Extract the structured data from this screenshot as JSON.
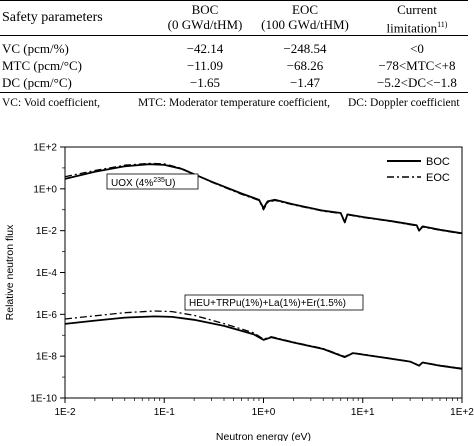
{
  "table": {
    "header": {
      "param": "Safety parameters",
      "boc_line1": "BOC",
      "boc_line2": "(0 GWd/tHM)",
      "eoc_line1": "EOC",
      "eoc_line2": "(100 GWd/tHM)",
      "limit_line1": "Current",
      "limit_line2": "limitation",
      "limit_ref": "11)"
    },
    "rows": [
      {
        "param": "VC (pcm/%)",
        "boc": "−42.14",
        "eoc": "−248.54",
        "limit": "<0"
      },
      {
        "param": "MTC (pcm/°C)",
        "boc": "−11.09",
        "eoc": "−68.26",
        "limit": "−78<MTC<+8"
      },
      {
        "param": "DC (pcm/°C)",
        "boc": "−1.65",
        "eoc": "−1.47",
        "limit": "−5.2<DC<−1.8"
      }
    ],
    "footnote": {
      "vc": "VC: Void coefficient,",
      "mtc": "MTC: Moderator temperature coefficient,",
      "dc": "DC: Doppler coefficient"
    }
  },
  "chart_data": {
    "type": "line",
    "xscale": "log",
    "yscale": "log",
    "xlim": [
      0.01,
      100
    ],
    "ylim": [
      1e-10,
      100
    ],
    "xlabel": "Neutron energy (eV)",
    "ylabel": "Relative neutron flux",
    "x_tick_labels": [
      "1E-2",
      "1E-1",
      "1E+0",
      "1E+1",
      "1E+2"
    ],
    "y_tick_labels": [
      "1E-10",
      "1E-8",
      "1E-6",
      "1E-4",
      "1E-2",
      "1E+0",
      "1E+2"
    ],
    "legend": {
      "position": "top-right",
      "entries": [
        "BOC",
        "EOC"
      ]
    },
    "annotations": {
      "uox": {
        "prefix": "UOX (4%",
        "sup": "235",
        "suffix": "U)"
      },
      "heu": "HEU+TRPu(1%)+La(1%)+Er(1.5%)"
    },
    "series": [
      {
        "name": "BOC",
        "group": "UOX",
        "style": "solid",
        "x": [
          0.01,
          0.02,
          0.04,
          0.07,
          0.1,
          0.15,
          0.3,
          0.6,
          0.9,
          1.0,
          1.1,
          1.3,
          2,
          4,
          6,
          6.6,
          7,
          10,
          20,
          35,
          37,
          40,
          60,
          100
        ],
        "y": [
          3.0,
          6.5,
          12,
          15,
          14,
          9.0,
          2.2,
          0.6,
          0.3,
          0.12,
          0.25,
          0.3,
          0.18,
          0.09,
          0.07,
          0.025,
          0.06,
          0.045,
          0.028,
          0.018,
          0.01,
          0.016,
          0.011,
          0.0075
        ]
      },
      {
        "name": "EOC",
        "group": "UOX",
        "style": "dashdot",
        "x": [
          0.01,
          0.02,
          0.04,
          0.07,
          0.1,
          0.15,
          0.3,
          0.6,
          0.9,
          1.0,
          1.1,
          1.3,
          2,
          4,
          6,
          6.6,
          7,
          10,
          20,
          35,
          37,
          40,
          60,
          100
        ],
        "y": [
          3.8,
          7.5,
          13.5,
          16.5,
          15.5,
          9.5,
          2.1,
          0.55,
          0.28,
          0.1,
          0.22,
          0.28,
          0.17,
          0.085,
          0.066,
          0.024,
          0.058,
          0.043,
          0.027,
          0.017,
          0.01,
          0.015,
          0.0105,
          0.0072
        ]
      },
      {
        "name": "BOC",
        "group": "HEU",
        "style": "solid",
        "x": [
          0.01,
          0.02,
          0.04,
          0.08,
          0.12,
          0.2,
          0.4,
          0.8,
          1.0,
          1.2,
          2,
          4,
          6.6,
          8,
          15,
          30,
          37,
          40,
          60,
          100
        ],
        "y": [
          3.5e-07,
          5e-07,
          7e-07,
          8e-07,
          7.5e-07,
          5.5e-07,
          2.8e-07,
          1.1e-07,
          6e-08,
          8e-08,
          4.5e-08,
          2.2e-08,
          9e-09,
          1.4e-08,
          9e-09,
          5.5e-09,
          3.5e-09,
          5e-09,
          3.5e-09,
          2.5e-09
        ]
      },
      {
        "name": "EOC",
        "group": "HEU",
        "style": "dashdot",
        "x": [
          0.01,
          0.02,
          0.04,
          0.08,
          0.12,
          0.2,
          0.4,
          0.8,
          1.0,
          1.2,
          2,
          4,
          6.6,
          8,
          15,
          30,
          37,
          40,
          60,
          100
        ],
        "y": [
          6e-07,
          8.5e-07,
          1.2e-06,
          1.45e-06,
          1.35e-06,
          9e-07,
          3.6e-07,
          1.3e-07,
          6.5e-08,
          8.5e-08,
          4.7e-08,
          2.3e-08,
          9.5e-09,
          1.45e-08,
          9.2e-09,
          5.6e-09,
          3.6e-09,
          5.1e-09,
          3.6e-09,
          2.6e-09
        ]
      }
    ]
  }
}
